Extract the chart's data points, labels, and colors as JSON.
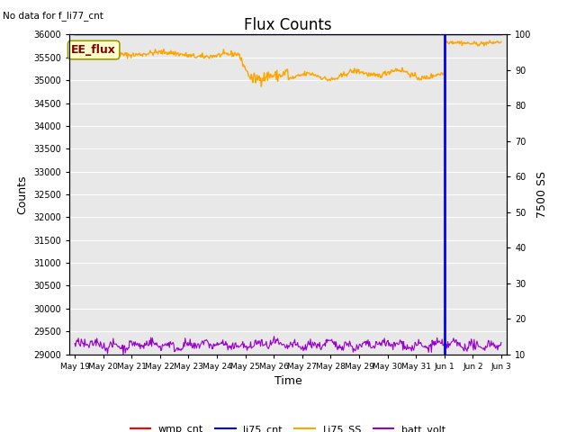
{
  "title": "Flux Counts",
  "top_left_text": "No data for f_li77_cnt",
  "ylabel_left": "Counts",
  "ylabel_right": "7500 SS",
  "xlabel": "Time",
  "ylim_left": [
    29000,
    36000
  ],
  "ylim_right": [
    10,
    100
  ],
  "background_color": "#e8e8e8",
  "grid_color": "#ffffff",
  "annotation_box_text": "EE_flux",
  "annotation_box_facecolor": "#ffffcc",
  "annotation_box_edgecolor": "#999900",
  "vline_color": "blue",
  "li75_cnt_color": "blue",
  "Li75_SS_color": "orange",
  "wmp_cnt_color": "red",
  "batt_volt_color": "#9900cc",
  "legend_entries": [
    "wmp_cnt",
    "li75_cnt",
    "Li75_SS",
    "batt_volt"
  ],
  "legend_colors": [
    "red",
    "blue",
    "orange",
    "#9900cc"
  ],
  "x_tick_labels": [
    "May 19",
    "May 20",
    "May 21",
    "May 22",
    "May 23",
    "May 24",
    "May 25",
    "May 26",
    "May 27",
    "May 28",
    "May 29",
    "May 30",
    "May 31",
    "Jun 1",
    "Jun 2",
    "Jun 3"
  ],
  "yticks_left": [
    29000,
    29500,
    30000,
    30500,
    31000,
    31500,
    32000,
    32500,
    33000,
    33500,
    34000,
    34500,
    35000,
    35500,
    36000
  ],
  "yticks_right": [
    10,
    20,
    30,
    40,
    50,
    60,
    70,
    80,
    90,
    100
  ],
  "vline_day": 13,
  "n_points": 600,
  "seed": 42
}
